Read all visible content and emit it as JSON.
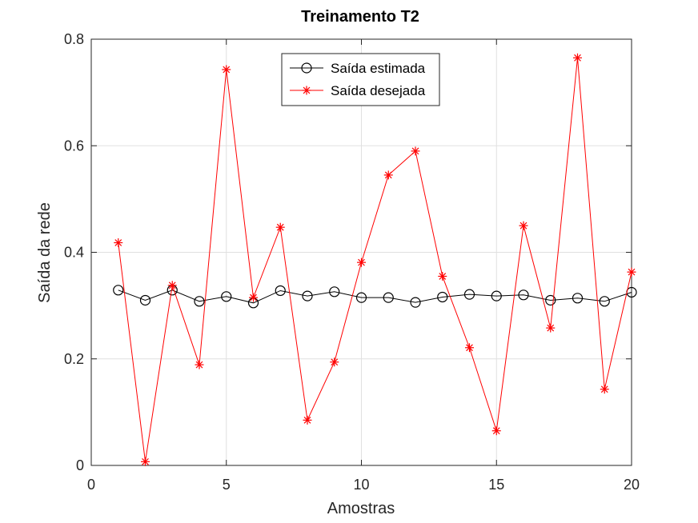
{
  "chart_data": {
    "type": "line",
    "title": "Treinamento T2",
    "xlabel": "Amostras",
    "ylabel": "Saída da rede",
    "xlim": [
      0,
      20
    ],
    "ylim": [
      0,
      0.8
    ],
    "xticks": [
      0,
      5,
      10,
      15,
      20
    ],
    "xtick_labels": [
      "0",
      "5",
      "10",
      "15",
      "20"
    ],
    "yticks": [
      0,
      0.2,
      0.4,
      0.6,
      0.8
    ],
    "ytick_labels": [
      "0",
      "0.2",
      "0.4",
      "0.6",
      "0.8"
    ],
    "grid": true,
    "legend_position": "top-center",
    "x": [
      1,
      2,
      3,
      4,
      5,
      6,
      7,
      8,
      9,
      10,
      11,
      12,
      13,
      14,
      15,
      16,
      17,
      18,
      19,
      20
    ],
    "series": [
      {
        "name": "Saída estimada",
        "color": "#000000",
        "marker": "circle",
        "values": [
          0.329,
          0.31,
          0.329,
          0.308,
          0.317,
          0.305,
          0.328,
          0.318,
          0.326,
          0.315,
          0.315,
          0.306,
          0.316,
          0.321,
          0.318,
          0.32,
          0.31,
          0.314,
          0.308,
          0.325
        ]
      },
      {
        "name": "Saída desejada",
        "color": "#ff0000",
        "marker": "asterisk",
        "values": [
          0.418,
          0.007,
          0.338,
          0.189,
          0.743,
          0.315,
          0.447,
          0.085,
          0.194,
          0.381,
          0.545,
          0.59,
          0.355,
          0.221,
          0.065,
          0.45,
          0.258,
          0.765,
          0.143,
          0.363
        ]
      }
    ]
  }
}
